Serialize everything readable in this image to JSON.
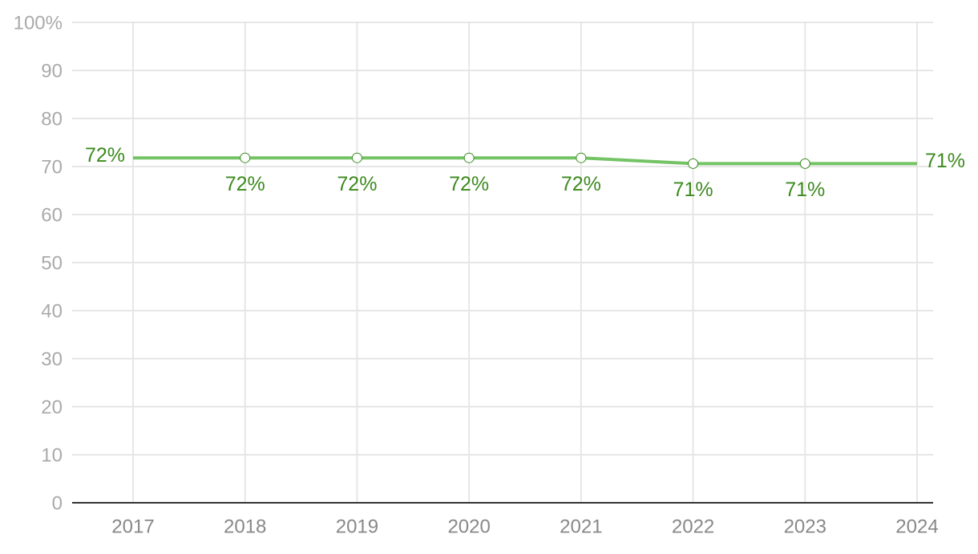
{
  "chart_data": {
    "type": "line",
    "categories": [
      "2017",
      "2018",
      "2019",
      "2020",
      "2021",
      "2022",
      "2023",
      "2024"
    ],
    "series": [
      {
        "color": "#74c365",
        "values": [
          71.8,
          71.8,
          71.8,
          71.8,
          71.8,
          70.6,
          70.6,
          70.6
        ],
        "value_labels": [
          "72%",
          "72%",
          "72%",
          "72%",
          "72%",
          "71%",
          "71%",
          "71%"
        ]
      }
    ],
    "ylim": [
      0,
      100
    ],
    "yticks": [
      0,
      10,
      20,
      30,
      40,
      50,
      60,
      70,
      80,
      90,
      {
        "value": 100,
        "label": "100%"
      }
    ],
    "grid": true
  }
}
